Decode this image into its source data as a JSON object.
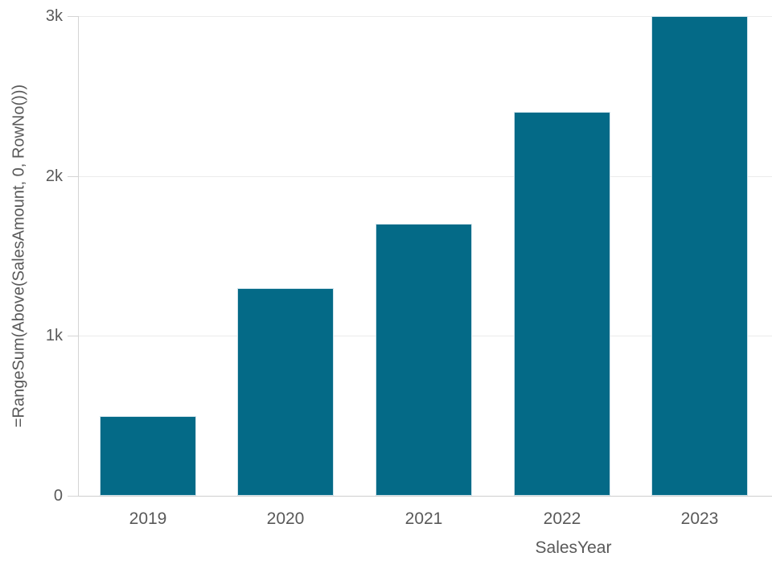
{
  "chart_data": {
    "type": "bar",
    "title": "",
    "categories": [
      "2019",
      "2020",
      "2021",
      "2022",
      "2023"
    ],
    "values": [
      500,
      1300,
      1700,
      2400,
      3000
    ],
    "xlabel": "SalesYear",
    "ylabel": "=RangeSum(Above(SalesAmount, 0, RowNo()))",
    "ylim": [
      0,
      3000
    ],
    "yticks": [
      {
        "value": 0,
        "label": "0"
      },
      {
        "value": 1000,
        "label": "1k"
      },
      {
        "value": 2000,
        "label": "2k"
      },
      {
        "value": 3000,
        "label": "3k"
      }
    ],
    "grid": true,
    "legend": false,
    "bar_color": "#046a87",
    "bar_border_color": "#cfe3eb",
    "grid_color": "#ebebeb",
    "axis_color": "#d4d4d4",
    "text_color": "#595959"
  }
}
